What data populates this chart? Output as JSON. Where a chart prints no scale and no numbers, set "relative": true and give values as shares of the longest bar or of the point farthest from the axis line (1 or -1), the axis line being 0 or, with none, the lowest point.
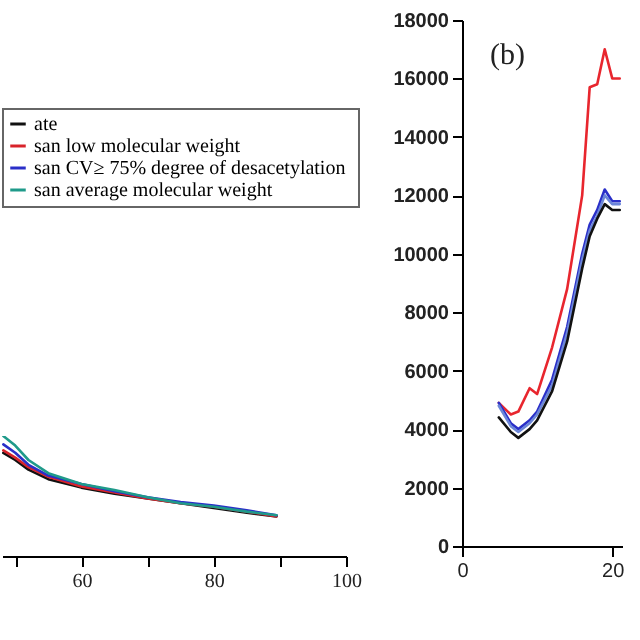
{
  "chart_data": [
    {
      "type": "line",
      "relative": true,
      "xlim": [
        48,
        100
      ],
      "xticks": [
        {
          "value": 50,
          "label": null
        },
        60,
        {
          "value": 70,
          "label": null
        },
        80,
        {
          "value": 90,
          "label": null
        },
        100
      ],
      "tick_labels": "x",
      "legend": "top",
      "x": [
        48.2,
        50,
        52,
        55,
        60,
        65,
        70,
        75,
        80,
        85,
        89.5
      ],
      "series": [
        {
          "name": "ate",
          "color": "#111111",
          "values": [
            0.86,
            0.8,
            0.72,
            0.64,
            0.57,
            0.52,
            0.48,
            0.44,
            0.4,
            0.36,
            0.33
          ]
        },
        {
          "name": "san low molecular weight",
          "color": "#d8232a",
          "values": [
            0.88,
            0.82,
            0.74,
            0.66,
            0.58,
            0.53,
            0.48,
            0.44,
            0.41,
            0.37,
            0.33
          ]
        },
        {
          "name": "san CV≥  75% degree of desacetylation",
          "color": "#2a2fc8",
          "values": [
            0.93,
            0.86,
            0.76,
            0.67,
            0.6,
            0.54,
            0.49,
            0.45,
            0.42,
            0.38,
            0.34
          ]
        },
        {
          "name": "san average molecular weight",
          "color": "#1f9a8a",
          "values": [
            1.0,
            0.92,
            0.8,
            0.69,
            0.6,
            0.55,
            0.49,
            0.44,
            0.41,
            0.37,
            0.34
          ]
        }
      ]
    },
    {
      "type": "line",
      "xlim": [
        0,
        21.3
      ],
      "xticks": [
        0,
        20
      ],
      "ylim": [
        0,
        18000
      ],
      "yticks": [
        0,
        2000,
        4000,
        6000,
        8000,
        10000,
        12000,
        14000,
        16000,
        18000
      ],
      "annotations": [
        "(b)"
      ],
      "x": [
        4.9,
        6.5,
        7.5,
        9,
        10,
        12,
        14,
        16,
        17,
        18,
        19,
        20,
        21
      ],
      "series": [
        {
          "color": "#e8262e",
          "values": [
            4900,
            4500,
            4600,
            5400,
            5200,
            6800,
            8800,
            12000,
            15700,
            15800,
            17000,
            16000,
            16000
          ]
        },
        {
          "color": "#2a2fc8",
          "values": [
            4900,
            4200,
            4000,
            4300,
            4600,
            5700,
            7500,
            10000,
            11000,
            11500,
            12200,
            11800,
            11800
          ]
        },
        {
          "color": "#6b86d8",
          "values": [
            4800,
            4100,
            3900,
            4200,
            4500,
            5500,
            7300,
            9800,
            10800,
            11300,
            12000,
            11700,
            11700
          ]
        },
        {
          "color": "#111111",
          "values": [
            4400,
            3900,
            3700,
            4000,
            4300,
            5300,
            7000,
            9500,
            10600,
            11200,
            11700,
            11500,
            11500
          ]
        }
      ]
    }
  ]
}
